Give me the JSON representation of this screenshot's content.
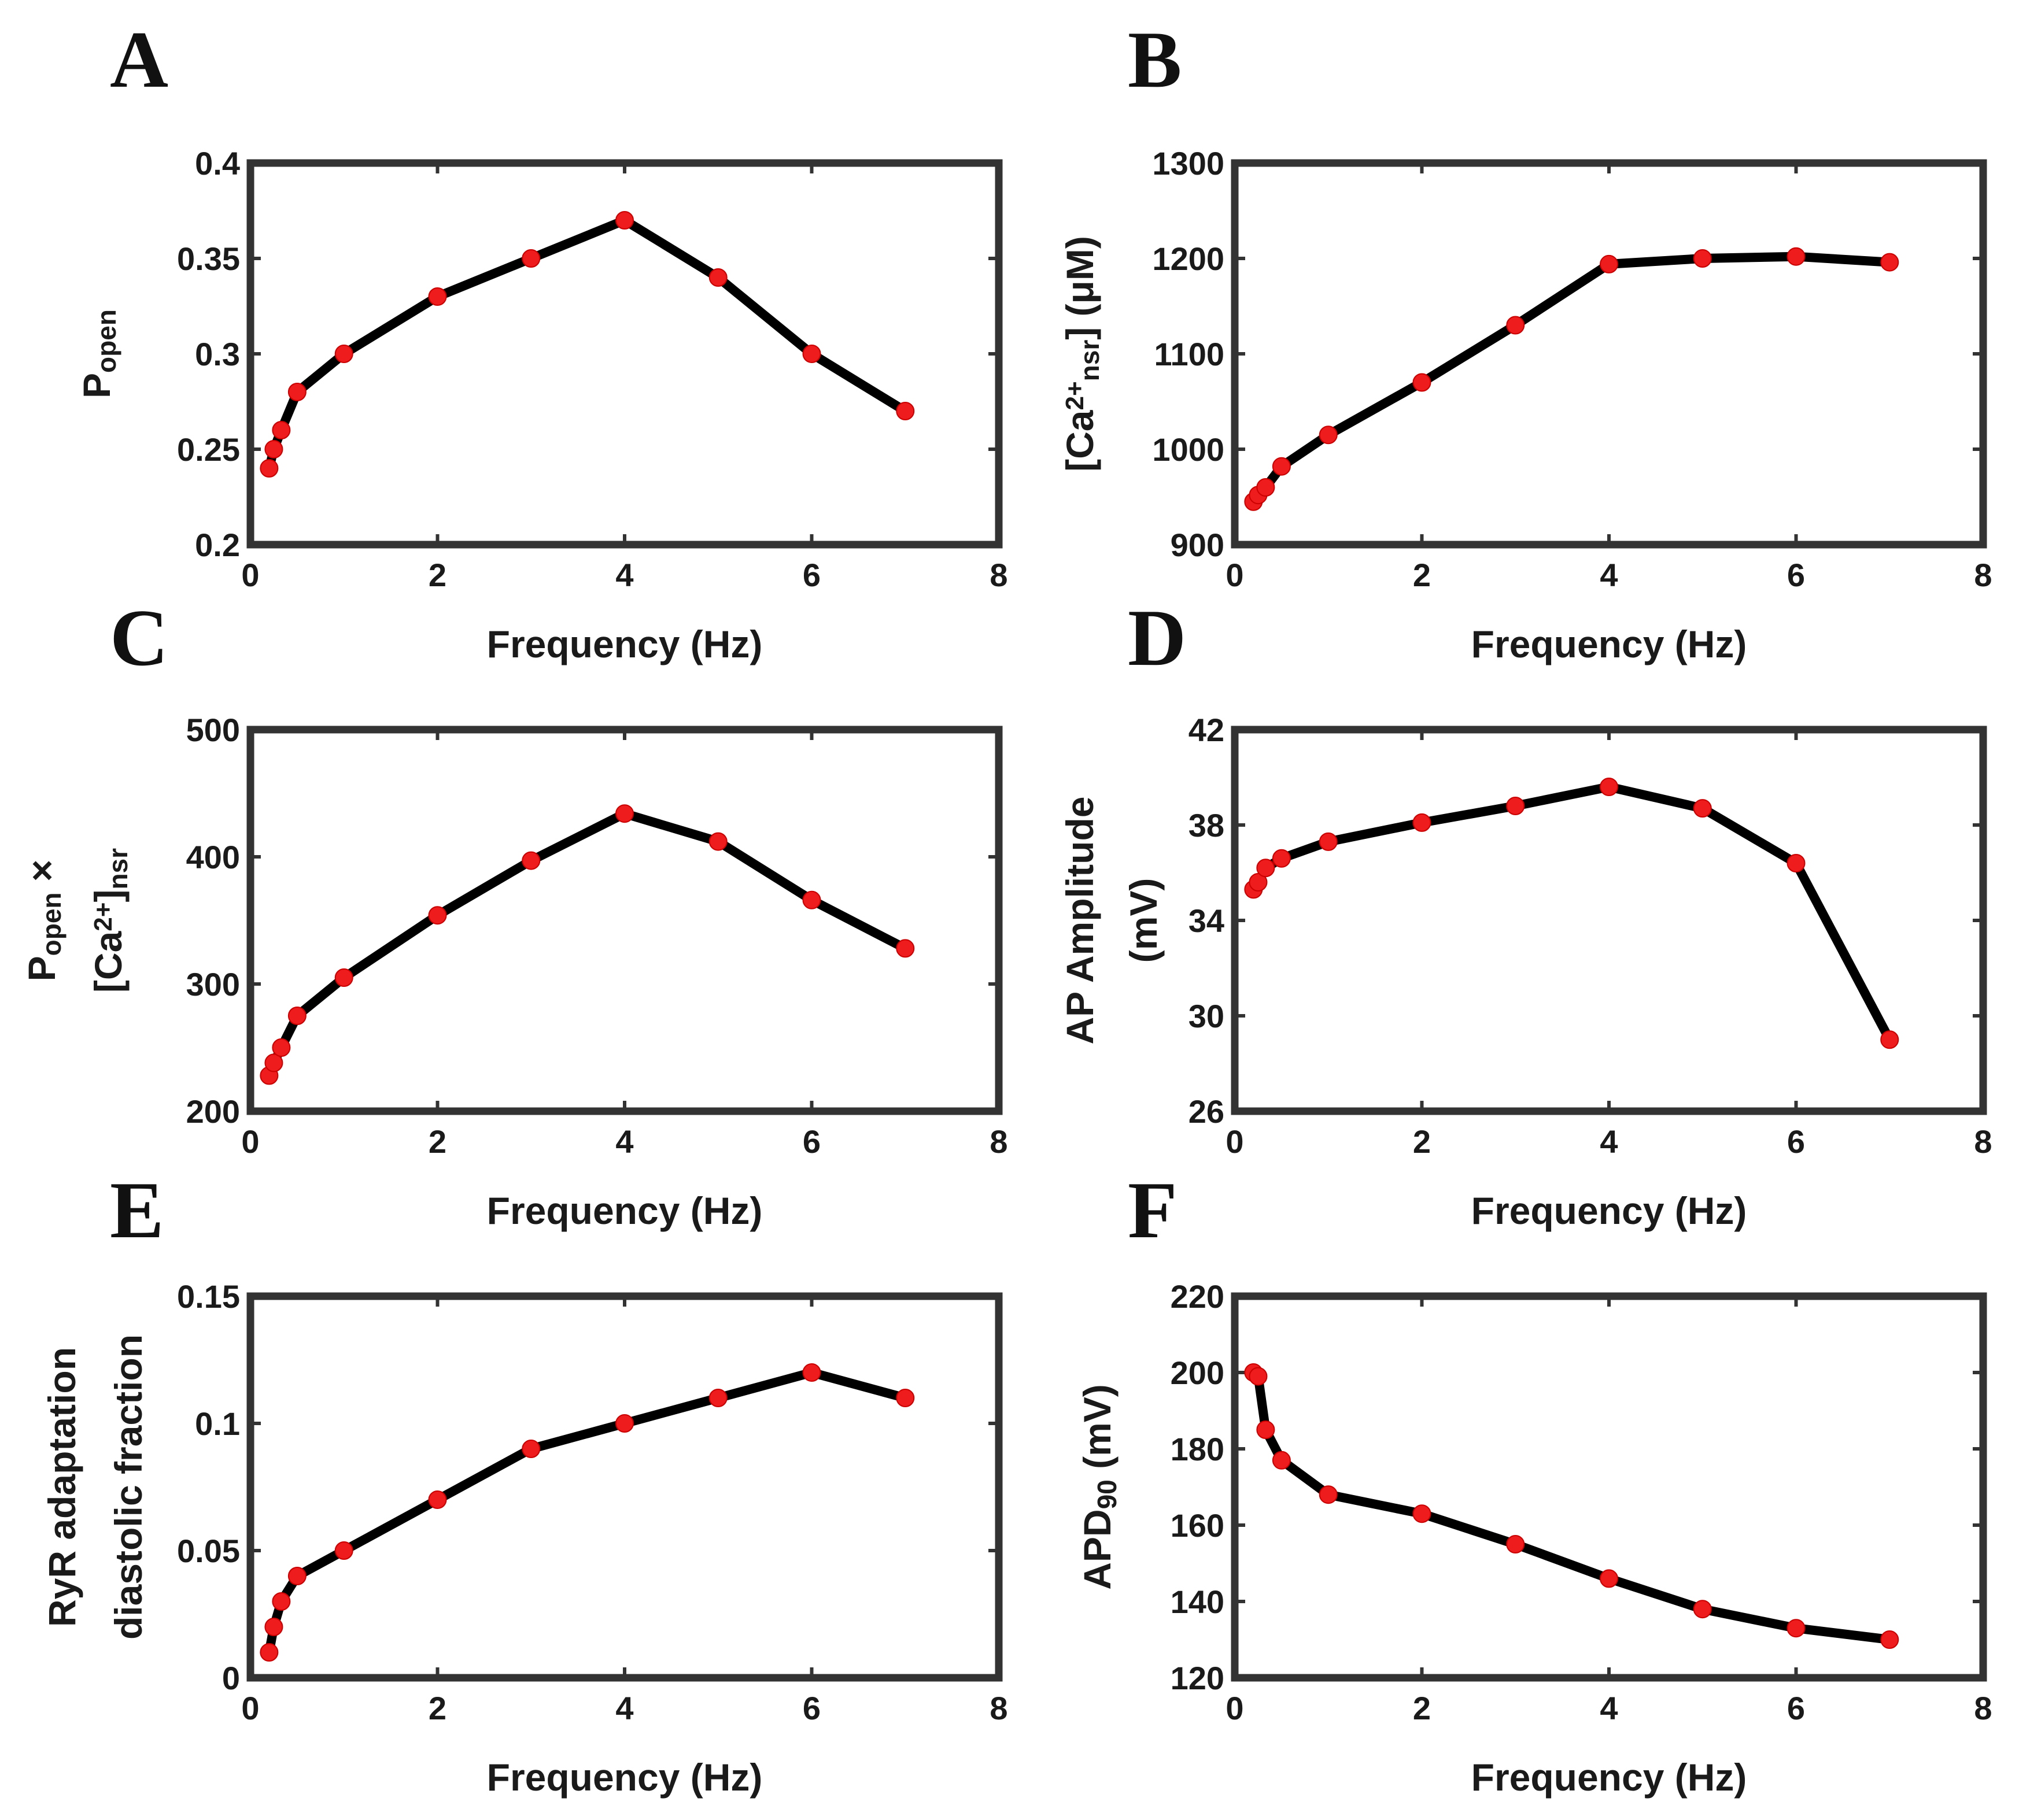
{
  "colors": {
    "line": "#000000",
    "marker": "#ee1c1c",
    "frame": "#333333",
    "background": "#ffffff"
  },
  "chart_data": [
    {
      "id": "A",
      "panel_label": "A",
      "type": "line",
      "xlabel": "Frequency (Hz)",
      "ylabel_parts": [
        {
          "text": "P",
          "style": "normal"
        },
        {
          "text": "open",
          "style": "sub"
        }
      ],
      "xlim": [
        0,
        8
      ],
      "ylim": [
        0.2,
        0.4
      ],
      "xticks": [
        0,
        2,
        4,
        6,
        8
      ],
      "xtick_labels": [
        "0",
        "2",
        "4",
        "6",
        "8"
      ],
      "yticks": [
        0.2,
        0.25,
        0.3,
        0.35,
        0.4
      ],
      "ytick_labels": [
        "0.2",
        "0.25",
        "0.3",
        "0.35",
        "0.4"
      ],
      "series": [
        {
          "name": "P_open",
          "x": [
            0.2,
            0.25,
            0.33,
            0.5,
            1,
            2,
            3,
            4,
            5,
            6,
            7
          ],
          "y": [
            0.24,
            0.25,
            0.26,
            0.28,
            0.3,
            0.33,
            0.35,
            0.37,
            0.34,
            0.3,
            0.27
          ]
        }
      ]
    },
    {
      "id": "B",
      "panel_label": "B",
      "type": "line",
      "xlabel": "Frequency (Hz)",
      "ylabel_parts": [
        {
          "text": "[Ca",
          "style": "normal"
        },
        {
          "text": "2+",
          "style": "sup"
        },
        {
          "text": "nsr",
          "style": "sub"
        },
        {
          "text": "] (μM)",
          "style": "normal"
        }
      ],
      "xlim": [
        0,
        8
      ],
      "ylim": [
        900,
        1300
      ],
      "xticks": [
        0,
        2,
        4,
        6,
        8
      ],
      "xtick_labels": [
        "0",
        "2",
        "4",
        "6",
        "8"
      ],
      "yticks": [
        900,
        1000,
        1100,
        1200,
        1300
      ],
      "ytick_labels": [
        "900",
        "1000",
        "1100",
        "1200",
        "1300"
      ],
      "series": [
        {
          "name": "Ca_nsr",
          "x": [
            0.2,
            0.25,
            0.33,
            0.5,
            1,
            2,
            3,
            4,
            5,
            6,
            7
          ],
          "y": [
            945,
            952,
            960,
            982,
            1015,
            1070,
            1130,
            1194,
            1200,
            1202,
            1196
          ]
        }
      ]
    },
    {
      "id": "C",
      "panel_label": "C",
      "type": "line",
      "xlabel": "Frequency (Hz)",
      "ylabel_lines": [
        [
          {
            "text": "P",
            "style": "normal"
          },
          {
            "text": "open",
            "style": "sub"
          },
          {
            "text": " ×",
            "style": "normal"
          }
        ],
        [
          {
            "text": "[Ca",
            "style": "normal"
          },
          {
            "text": "2+",
            "style": "sup"
          },
          {
            "text": "]",
            "style": "normal"
          },
          {
            "text": "nsr",
            "style": "sub"
          }
        ]
      ],
      "xlim": [
        0,
        8
      ],
      "ylim": [
        200,
        500
      ],
      "xticks": [
        0,
        2,
        4,
        6,
        8
      ],
      "xtick_labels": [
        "0",
        "2",
        "4",
        "6",
        "8"
      ],
      "yticks": [
        200,
        300,
        400,
        500
      ],
      "ytick_labels": [
        "200",
        "300",
        "400",
        "500"
      ],
      "series": [
        {
          "name": "Popen_x_Ca_nsr",
          "x": [
            0.2,
            0.25,
            0.33,
            0.5,
            1,
            2,
            3,
            4,
            5,
            6,
            7
          ],
          "y": [
            228,
            238,
            250,
            275,
            305,
            354,
            397,
            434,
            412,
            366,
            328
          ]
        }
      ]
    },
    {
      "id": "D",
      "panel_label": "D",
      "type": "line",
      "xlabel": "Frequency (Hz)",
      "ylabel_lines": [
        [
          {
            "text": "AP Amplitude",
            "style": "normal"
          }
        ],
        [
          {
            "text": "(mV)",
            "style": "normal"
          }
        ]
      ],
      "xlim": [
        0,
        8
      ],
      "ylim": [
        26,
        42
      ],
      "xticks": [
        0,
        2,
        4,
        6,
        8
      ],
      "xtick_labels": [
        "0",
        "2",
        "4",
        "6",
        "8"
      ],
      "yticks": [
        26,
        30,
        34,
        38,
        42
      ],
      "ytick_labels": [
        "26",
        "30",
        "34",
        "38",
        "42"
      ],
      "series": [
        {
          "name": "AP_amplitude",
          "x": [
            0.2,
            0.25,
            0.33,
            0.5,
            1,
            2,
            3,
            4,
            5,
            6,
            7
          ],
          "y": [
            35.3,
            35.6,
            36.2,
            36.6,
            37.3,
            38.1,
            38.8,
            39.6,
            38.7,
            36.4,
            29.0
          ]
        }
      ]
    },
    {
      "id": "E",
      "panel_label": "E",
      "type": "line",
      "xlabel": "Frequency (Hz)",
      "ylabel_lines": [
        [
          {
            "text": "RyR adaptation",
            "style": "normal"
          }
        ],
        [
          {
            "text": "diastolic fraction",
            "style": "normal"
          }
        ]
      ],
      "xlim": [
        0,
        8
      ],
      "ylim": [
        0,
        0.15
      ],
      "xticks": [
        0,
        2,
        4,
        6,
        8
      ],
      "xtick_labels": [
        "0",
        "2",
        "4",
        "6",
        "8"
      ],
      "yticks": [
        0,
        0.05,
        0.1,
        0.15
      ],
      "ytick_labels": [
        "0",
        "0.05",
        "0.1",
        "0.15"
      ],
      "series": [
        {
          "name": "RyR_adaptation_fraction",
          "x": [
            0.2,
            0.25,
            0.33,
            0.5,
            1,
            2,
            3,
            4,
            5,
            6,
            7
          ],
          "y": [
            0.01,
            0.02,
            0.03,
            0.04,
            0.05,
            0.07,
            0.09,
            0.1,
            0.11,
            0.12,
            0.11
          ]
        }
      ]
    },
    {
      "id": "F",
      "panel_label": "F",
      "type": "line",
      "xlabel": "Frequency (Hz)",
      "ylabel_parts": [
        {
          "text": "APD",
          "style": "normal"
        },
        {
          "text": "90",
          "style": "sub"
        },
        {
          "text": " (mV)",
          "style": "normal"
        }
      ],
      "xlim": [
        0,
        8
      ],
      "ylim": [
        120,
        220
      ],
      "xticks": [
        0,
        2,
        4,
        6,
        8
      ],
      "xtick_labels": [
        "0",
        "2",
        "4",
        "6",
        "8"
      ],
      "yticks": [
        120,
        140,
        160,
        180,
        200,
        220
      ],
      "ytick_labels": [
        "120",
        "140",
        "160",
        "180",
        "200",
        "220"
      ],
      "series": [
        {
          "name": "APD90",
          "x": [
            0.2,
            0.25,
            0.33,
            0.5,
            1,
            2,
            3,
            4,
            5,
            6,
            7
          ],
          "y": [
            200,
            199,
            185,
            177,
            168,
            163,
            155,
            146,
            138,
            133,
            130
          ]
        }
      ]
    }
  ]
}
